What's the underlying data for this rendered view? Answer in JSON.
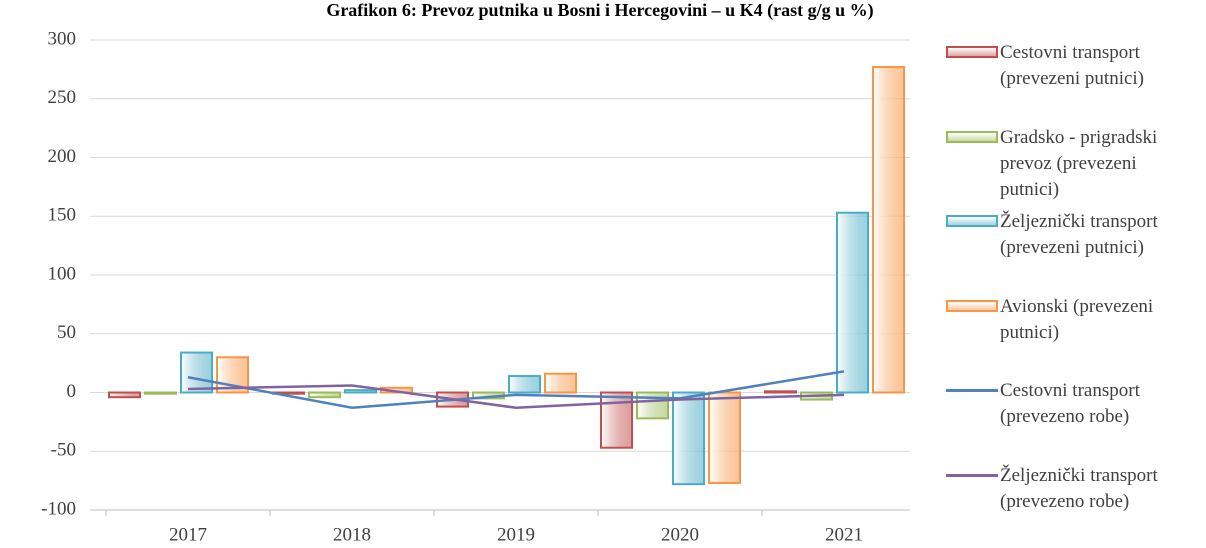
{
  "chart_data": {
    "type": "bar",
    "title": "Grafikon 6: Prevoz putnika u Bosni i Hercegovini – u K4 (rast g/g u %)",
    "categories": [
      "2017",
      "2018",
      "2019",
      "2020",
      "2021"
    ],
    "series": [
      {
        "name": "Cestovni transport (prevezeni putnici)",
        "type": "bar",
        "color": "#c0504d",
        "values": [
          -4,
          -1,
          -12,
          -47,
          1
        ]
      },
      {
        "name": "Gradsko - prigradski prevoz (prevezeni putnici)",
        "type": "bar",
        "color": "#9bbb59",
        "values": [
          -1,
          -4,
          -5,
          -22,
          -6
        ]
      },
      {
        "name": "Željeznički transport (prevezeni putnici)",
        "type": "bar",
        "color": "#4bacc6",
        "values": [
          34,
          2,
          14,
          -78,
          153
        ]
      },
      {
        "name": "Avionski (prevezeni putnici)",
        "type": "bar",
        "color": "#f79646",
        "values": [
          30,
          4,
          16,
          -77,
          277
        ]
      },
      {
        "name": "Cestovni transport (prevezeno robe)",
        "type": "line",
        "color": "#4f81bd",
        "values": [
          13,
          -13,
          -2,
          -5,
          18
        ]
      },
      {
        "name": "Željeznički transport (prevezeno robe)",
        "type": "line",
        "color": "#8064a2",
        "values": [
          3,
          6,
          -13,
          -6,
          -2
        ]
      }
    ],
    "ylim": [
      -100,
      300
    ],
    "yticks": [
      -100,
      -50,
      0,
      50,
      100,
      150,
      200,
      250,
      300
    ],
    "grid": true,
    "legend": "right"
  }
}
